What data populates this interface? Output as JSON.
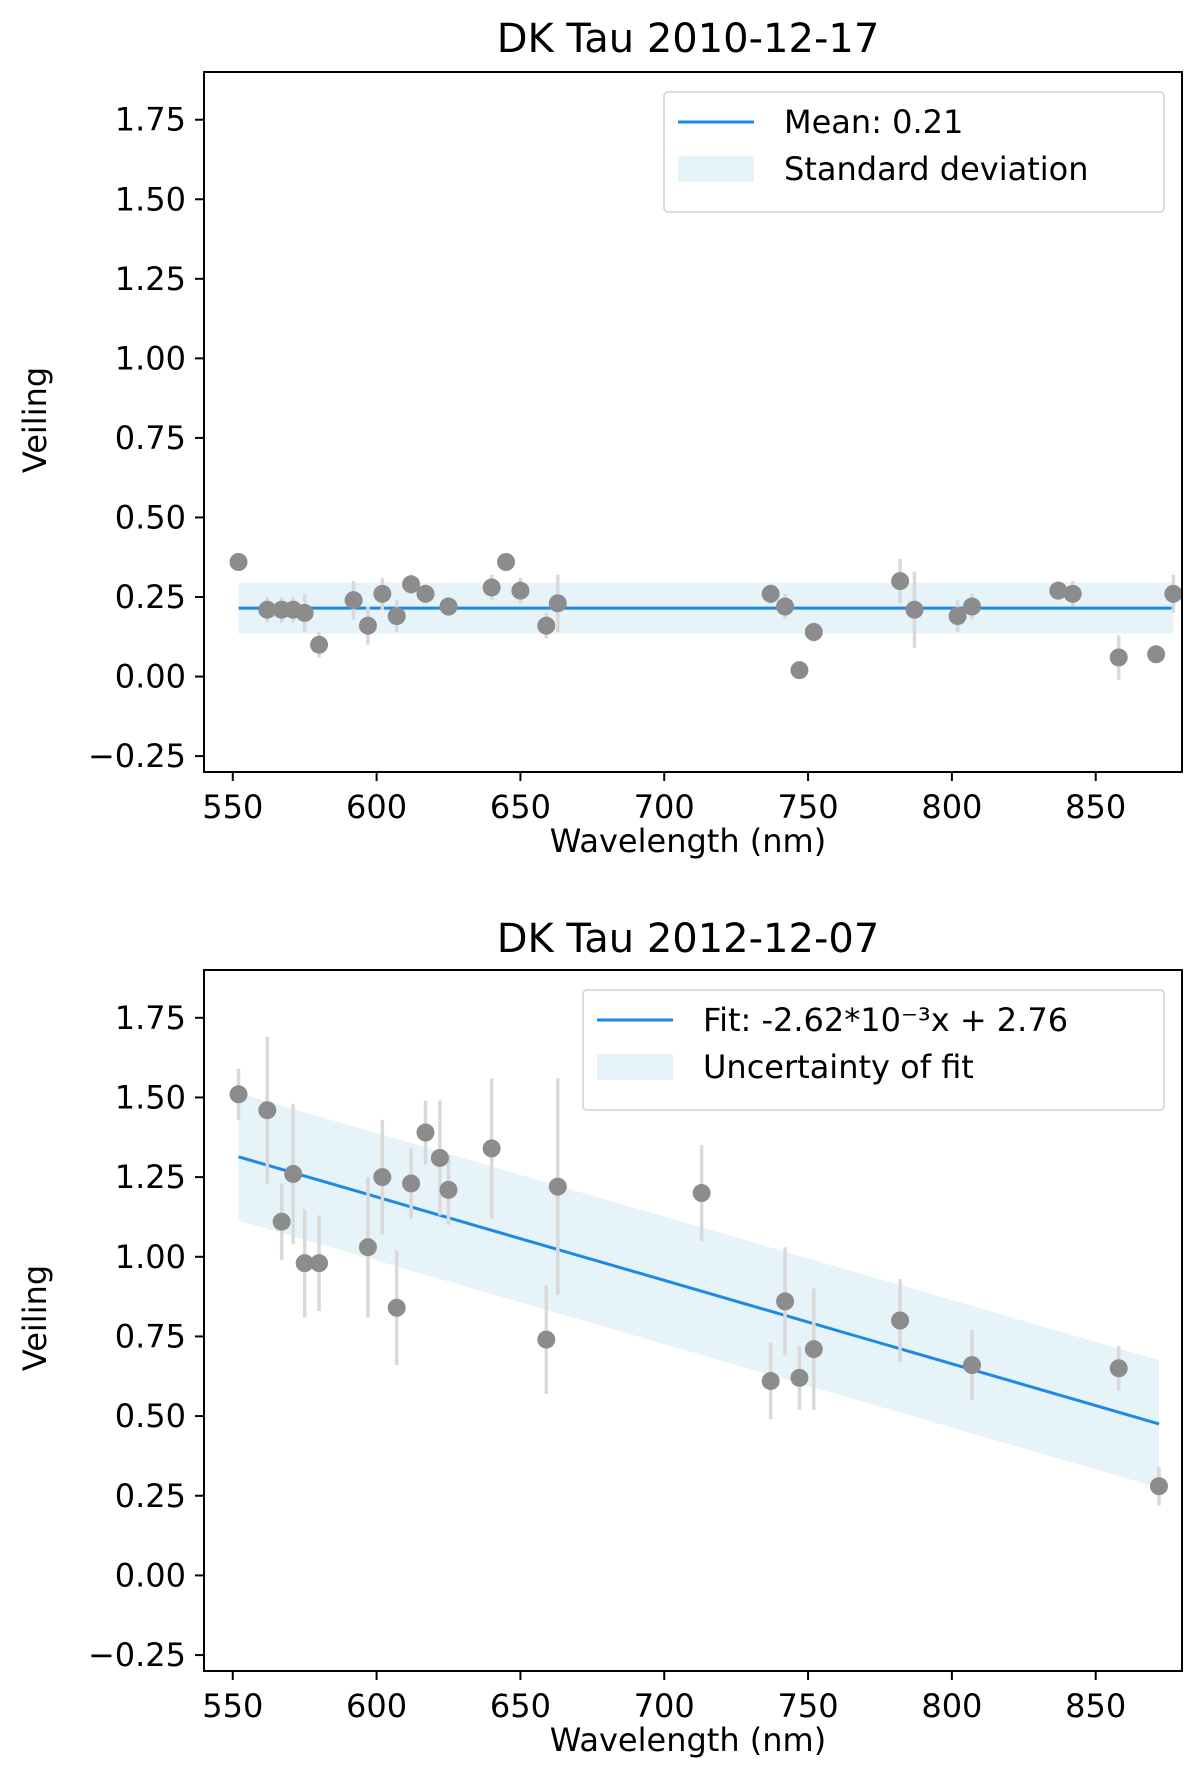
{
  "chart_data": [
    {
      "type": "scatter",
      "title": "DK Tau 2010-12-17",
      "xlabel": "Wavelength (nm)",
      "ylabel": "Veiling",
      "xlim": [
        540,
        880
      ],
      "ylim": [
        -0.3,
        1.9
      ],
      "xticks": [
        550,
        600,
        650,
        700,
        750,
        800,
        850
      ],
      "xtick_labels": [
        "550",
        "600",
        "650",
        "700",
        "750",
        "800",
        "850"
      ],
      "yticks": [
        -0.25,
        0.0,
        0.25,
        0.5,
        0.75,
        1.0,
        1.25,
        1.5,
        1.75
      ],
      "ytick_labels": [
        "−0.25",
        "0.00",
        "0.25",
        "0.50",
        "0.75",
        "1.00",
        "1.25",
        "1.50",
        "1.75"
      ],
      "grid": false,
      "legend_position": "top-right",
      "legend": [
        {
          "kind": "line",
          "label": "Mean: 0.21",
          "color": "#1e88e5"
        },
        {
          "kind": "patch",
          "label": "Standard deviation",
          "color": "#e6f3f8"
        }
      ],
      "trend": {
        "kind": "mean",
        "value": 0.215,
        "band": [
          0.135,
          0.295
        ],
        "x_range": [
          552,
          877
        ]
      },
      "points": {
        "x": [
          552,
          562,
          567,
          571,
          575,
          580,
          592,
          597,
          602,
          607,
          612,
          617,
          625,
          640,
          645,
          650,
          659,
          663,
          737,
          742,
          747,
          752,
          782,
          787,
          802,
          807,
          837,
          842,
          858,
          871,
          877
        ],
        "y": [
          0.36,
          0.21,
          0.21,
          0.21,
          0.2,
          0.1,
          0.24,
          0.16,
          0.26,
          0.19,
          0.29,
          0.26,
          0.22,
          0.28,
          0.36,
          0.27,
          0.16,
          0.23,
          0.26,
          0.22,
          0.02,
          0.14,
          0.3,
          0.21,
          0.19,
          0.22,
          0.27,
          0.26,
          0.06,
          0.07,
          0.26
        ],
        "err": [
          0.02,
          0.04,
          0.04,
          0.04,
          0.06,
          0.04,
          0.06,
          0.06,
          0.05,
          0.05,
          0.03,
          0.03,
          0.03,
          0.04,
          0.02,
          0.04,
          0.04,
          0.09,
          0.03,
          0.04,
          0.02,
          0.03,
          0.07,
          0.12,
          0.05,
          0.04,
          0.02,
          0.04,
          0.07,
          0.02,
          0.06
        ]
      }
    },
    {
      "type": "scatter",
      "title": "DK Tau 2012-12-07",
      "xlabel": "Wavelength (nm)",
      "ylabel": "Veiling",
      "xlim": [
        540,
        880
      ],
      "ylim": [
        -0.3,
        1.9
      ],
      "xticks": [
        550,
        600,
        650,
        700,
        750,
        800,
        850
      ],
      "xtick_labels": [
        "550",
        "600",
        "650",
        "700",
        "750",
        "800",
        "850"
      ],
      "yticks": [
        -0.25,
        0.0,
        0.25,
        0.5,
        0.75,
        1.0,
        1.25,
        1.5,
        1.75
      ],
      "ytick_labels": [
        "−0.25",
        "0.00",
        "0.25",
        "0.50",
        "0.75",
        "1.00",
        "1.25",
        "1.50",
        "1.75"
      ],
      "grid": false,
      "legend_position": "top-right",
      "legend": [
        {
          "kind": "line",
          "label": "Fit: -2.62*10⁻³x + 2.76",
          "color": "#1e88e5"
        },
        {
          "kind": "patch",
          "label": "Uncertainty of fit",
          "color": "#e6f3f8"
        }
      ],
      "trend": {
        "kind": "linear_fit",
        "slope": -0.00262,
        "intercept": 2.76,
        "band_halfwidth": 0.2,
        "x_range": [
          552,
          872
        ]
      },
      "points": {
        "x": [
          552,
          562,
          567,
          571,
          575,
          580,
          597,
          602,
          607,
          612,
          617,
          622,
          625,
          640,
          659,
          663,
          713,
          737,
          742,
          747,
          752,
          782,
          807,
          858,
          872
        ],
        "y": [
          1.51,
          1.46,
          1.11,
          1.26,
          0.98,
          0.98,
          1.03,
          1.25,
          0.84,
          1.23,
          1.39,
          1.31,
          1.21,
          1.34,
          0.74,
          1.22,
          1.2,
          0.61,
          0.86,
          0.62,
          0.71,
          0.8,
          0.66,
          0.65,
          0.28
        ],
        "err": [
          0.08,
          0.23,
          0.12,
          0.22,
          0.17,
          0.15,
          0.22,
          0.18,
          0.18,
          0.11,
          0.1,
          0.18,
          0.11,
          0.22,
          0.17,
          0.34,
          0.15,
          0.12,
          0.17,
          0.1,
          0.19,
          0.13,
          0.11,
          0.07,
          0.06
        ]
      }
    }
  ]
}
